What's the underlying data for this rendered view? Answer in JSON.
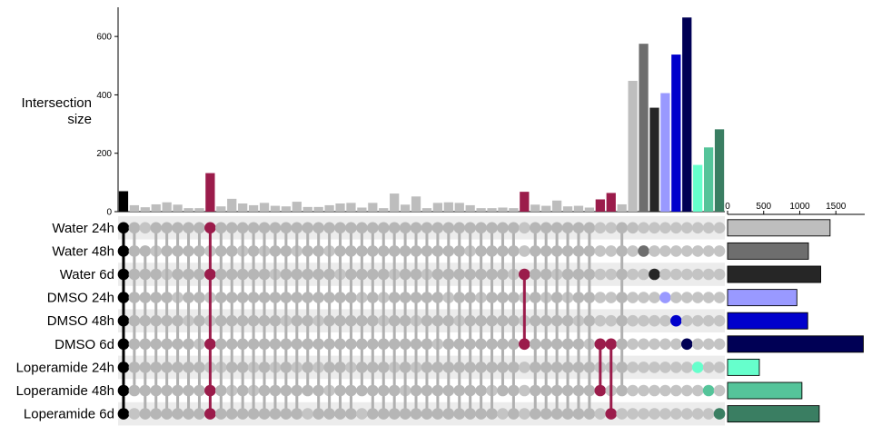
{
  "chart_data": {
    "type": "upset",
    "title": "",
    "ylabel": "Intersection size",
    "ylabel_lines": [
      "Intersection",
      "size"
    ],
    "intersection_axis": {
      "ylim": [
        0,
        700
      ],
      "ticks": [
        0,
        200,
        400,
        600
      ]
    },
    "setsize_axis": {
      "xlim": [
        0,
        1900
      ],
      "ticks": [
        0,
        500,
        1000,
        1500
      ]
    },
    "sets": [
      {
        "name": "Water 24h",
        "size": 1420,
        "color": "#bebebe"
      },
      {
        "name": "Water 48h",
        "size": 1120,
        "color": "#6e6e6e"
      },
      {
        "name": "Water 6d",
        "size": 1290,
        "color": "#262626"
      },
      {
        "name": "DMSO 24h",
        "size": 960,
        "color": "#9999ff"
      },
      {
        "name": "DMSO 48h",
        "size": 1110,
        "color": "#0000cc"
      },
      {
        "name": "DMSO 6d",
        "size": 1880,
        "color": "#000055"
      },
      {
        "name": "Loperamide 24h",
        "size": 440,
        "color": "#66ffcc"
      },
      {
        "name": "Loperamide 48h",
        "size": 1030,
        "color": "#55c49a"
      },
      {
        "name": "Loperamide 6d",
        "size": 1270,
        "color": "#3a7e62"
      }
    ],
    "intersections": [
      {
        "sets": [
          0,
          1,
          2,
          3,
          4,
          5,
          6,
          7,
          8
        ],
        "size": 70,
        "color": "#000000"
      },
      {
        "sets": [
          0,
          1,
          2,
          3,
          4,
          5,
          6,
          7
        ],
        "size": 22,
        "color": "#bdbdbd"
      },
      {
        "sets": [
          1,
          2,
          3,
          4,
          5,
          6,
          7,
          8
        ],
        "size": 15,
        "color": "#bdbdbd"
      },
      {
        "sets": [
          0,
          2,
          3,
          4,
          5,
          6,
          7,
          8
        ],
        "size": 25,
        "color": "#bdbdbd"
      },
      {
        "sets": [
          0,
          1,
          3,
          4,
          5,
          6,
          7,
          8
        ],
        "size": 32,
        "color": "#bdbdbd"
      },
      {
        "sets": [
          0,
          1,
          2,
          4,
          5,
          6,
          7,
          8
        ],
        "size": 24,
        "color": "#bdbdbd"
      },
      {
        "sets": [
          0,
          1,
          2,
          3,
          5,
          6,
          7,
          8
        ],
        "size": 12,
        "color": "#bdbdbd"
      },
      {
        "sets": [
          0,
          1,
          2,
          3,
          4,
          6,
          7,
          8
        ],
        "size": 12,
        "color": "#bdbdbd"
      },
      {
        "sets": [
          0,
          2,
          5,
          7,
          8
        ],
        "size": 132,
        "color": "#9b1c4b"
      },
      {
        "sets": [
          0,
          1,
          2,
          3,
          4,
          5,
          7,
          8
        ],
        "size": 18,
        "color": "#bdbdbd"
      },
      {
        "sets": [
          0,
          1,
          2,
          3,
          4,
          5,
          6,
          8
        ],
        "size": 44,
        "color": "#bdbdbd"
      },
      {
        "sets": [
          0,
          2,
          3,
          4,
          5,
          6,
          7,
          8
        ],
        "size": 28,
        "color": "#bdbdbd"
      },
      {
        "sets": [
          0,
          1,
          2,
          3,
          4,
          5,
          8
        ],
        "size": 22,
        "color": "#bdbdbd"
      },
      {
        "sets": [
          0,
          2,
          3,
          4,
          5,
          6,
          7,
          8
        ],
        "size": 30,
        "color": "#bdbdbd"
      },
      {
        "sets": [
          0,
          1,
          3,
          4,
          5,
          7,
          8
        ],
        "size": 20,
        "color": "#bdbdbd"
      },
      {
        "sets": [
          0,
          1,
          2,
          3,
          5,
          6,
          7,
          8
        ],
        "size": 18,
        "color": "#bdbdbd"
      },
      {
        "sets": [
          0,
          2,
          3,
          4,
          5,
          7,
          8
        ],
        "size": 34,
        "color": "#bdbdbd"
      },
      {
        "sets": [
          0,
          1,
          2,
          3,
          4,
          5,
          6,
          7
        ],
        "size": 16,
        "color": "#bdbdbd"
      },
      {
        "sets": [
          0,
          1,
          2,
          3,
          5,
          7,
          8
        ],
        "size": 16,
        "color": "#bdbdbd"
      },
      {
        "sets": [
          0,
          2,
          3,
          4,
          5,
          6,
          8
        ],
        "size": 22,
        "color": "#bdbdbd"
      },
      {
        "sets": [
          0,
          1,
          3,
          4,
          5,
          6,
          7,
          8
        ],
        "size": 28,
        "color": "#bdbdbd"
      },
      {
        "sets": [
          0,
          1,
          2,
          3,
          4,
          5,
          7,
          8
        ],
        "size": 30,
        "color": "#bdbdbd"
      },
      {
        "sets": [
          0,
          1,
          2,
          4,
          5,
          6,
          7
        ],
        "size": 14,
        "color": "#bdbdbd"
      },
      {
        "sets": [
          0,
          1,
          2,
          3,
          4,
          5,
          6,
          7,
          8
        ],
        "size": 30,
        "color": "#bdbdbd"
      },
      {
        "sets": [
          0,
          1,
          2,
          5,
          6,
          7,
          8
        ],
        "size": 12,
        "color": "#bdbdbd"
      },
      {
        "sets": [
          0,
          1,
          3,
          4,
          5,
          7,
          8
        ],
        "size": 62,
        "color": "#bdbdbd"
      },
      {
        "sets": [
          0,
          1,
          2,
          3,
          4,
          5,
          6,
          8
        ],
        "size": 24,
        "color": "#bdbdbd"
      },
      {
        "sets": [
          0,
          1,
          2,
          3,
          5,
          7,
          8
        ],
        "size": 52,
        "color": "#bdbdbd"
      },
      {
        "sets": [
          0,
          1,
          3,
          4,
          5,
          6,
          7,
          8
        ],
        "size": 12,
        "color": "#bdbdbd"
      },
      {
        "sets": [
          0,
          1,
          2,
          3,
          4,
          6,
          7,
          8
        ],
        "size": 30,
        "color": "#bdbdbd"
      },
      {
        "sets": [
          0,
          1,
          2,
          4,
          5,
          6,
          7,
          8
        ],
        "size": 32,
        "color": "#bdbdbd"
      },
      {
        "sets": [
          0,
          1,
          2,
          3,
          5,
          6,
          7,
          8
        ],
        "size": 30,
        "color": "#bdbdbd"
      },
      {
        "sets": [
          0,
          2,
          3,
          4,
          5,
          6,
          7,
          8
        ],
        "size": 22,
        "color": "#bdbdbd"
      },
      {
        "sets": [
          0,
          1,
          2,
          4,
          5,
          6,
          7,
          8
        ],
        "size": 12,
        "color": "#bdbdbd"
      },
      {
        "sets": [
          0,
          1,
          2,
          3,
          4,
          5,
          6,
          8
        ],
        "size": 12,
        "color": "#bdbdbd"
      },
      {
        "sets": [
          0,
          1,
          2,
          3,
          4,
          5,
          6,
          7
        ],
        "size": 14,
        "color": "#bdbdbd"
      },
      {
        "sets": [
          0,
          1,
          3,
          4,
          5,
          6,
          7,
          8
        ],
        "size": 12,
        "color": "#bdbdbd"
      },
      {
        "sets": [
          2,
          5
        ],
        "size": 68,
        "color": "#9b1c4b"
      },
      {
        "sets": [
          0,
          1,
          2,
          3,
          4,
          5,
          6,
          7,
          8
        ],
        "size": 24,
        "color": "#bdbdbd"
      },
      {
        "sets": [
          0,
          1,
          2,
          4,
          5,
          6,
          7,
          8
        ],
        "size": 20,
        "color": "#bdbdbd"
      },
      {
        "sets": [
          0,
          1,
          3,
          4,
          5,
          6,
          7,
          8
        ],
        "size": 38,
        "color": "#bdbdbd"
      },
      {
        "sets": [
          0,
          1,
          2,
          4,
          5,
          6,
          7,
          8
        ],
        "size": 18,
        "color": "#bdbdbd"
      },
      {
        "sets": [
          0,
          1,
          2,
          3,
          5,
          6,
          7,
          8
        ],
        "size": 20,
        "color": "#bdbdbd"
      },
      {
        "sets": [
          0,
          1,
          2,
          3,
          4,
          6,
          7,
          8
        ],
        "size": 14,
        "color": "#bdbdbd"
      },
      {
        "sets": [
          5,
          7
        ],
        "size": 42,
        "color": "#9b1c4b"
      },
      {
        "sets": [
          5,
          8
        ],
        "size": 64,
        "color": "#9b1c4b"
      },
      {
        "sets": [
          0,
          1,
          2,
          3,
          4,
          5,
          6,
          7
        ],
        "size": 25,
        "color": "#bdbdbd"
      },
      {
        "sets": [
          0
        ],
        "size": 448,
        "color": "#bebebe"
      },
      {
        "sets": [
          1
        ],
        "size": 575,
        "color": "#6e6e6e"
      },
      {
        "sets": [
          2
        ],
        "size": 356,
        "color": "#262626"
      },
      {
        "sets": [
          3
        ],
        "size": 406,
        "color": "#9999ff"
      },
      {
        "sets": [
          4
        ],
        "size": 538,
        "color": "#0000cc"
      },
      {
        "sets": [
          5
        ],
        "size": 665,
        "color": "#000055"
      },
      {
        "sets": [
          6
        ],
        "size": 160,
        "color": "#66ffcc"
      },
      {
        "sets": [
          7
        ],
        "size": 220,
        "color": "#55c49a"
      },
      {
        "sets": [
          8
        ],
        "size": 282,
        "color": "#3a7e62"
      }
    ]
  }
}
